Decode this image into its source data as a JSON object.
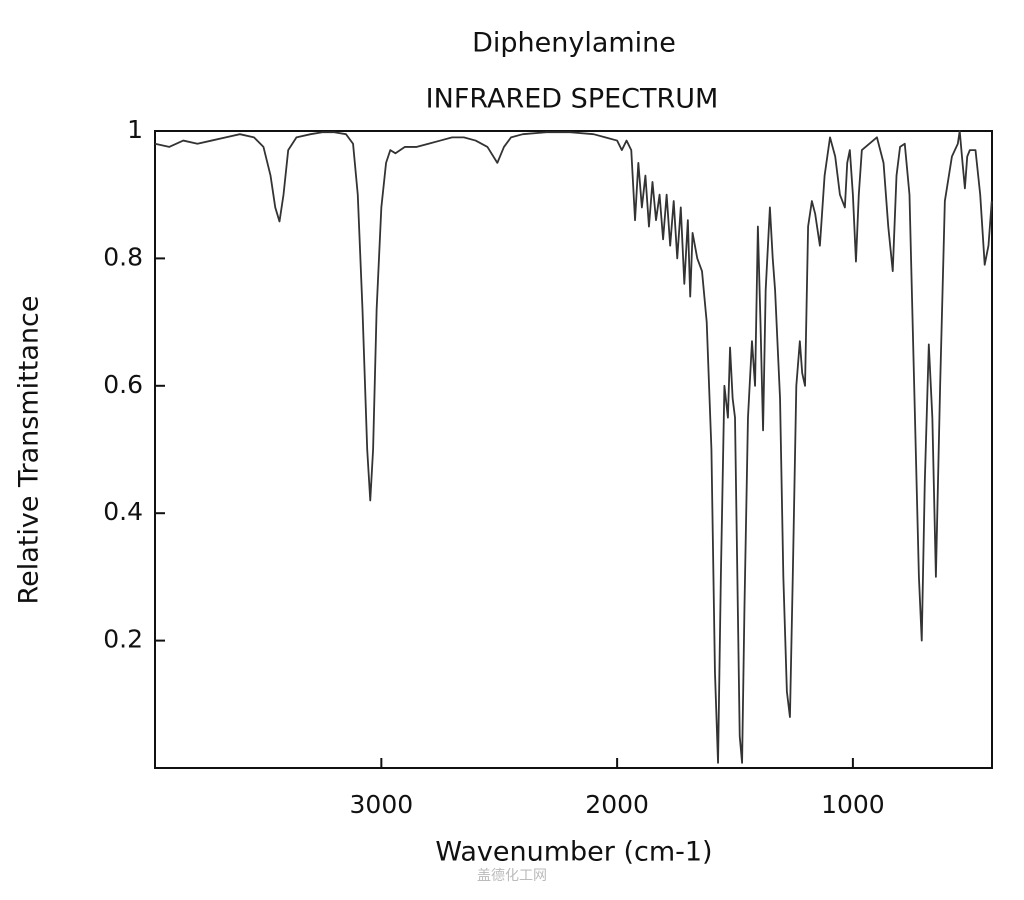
{
  "chart_data": {
    "type": "line",
    "title": "Diphenylamine",
    "subtitle": "INFRARED SPECTRUM",
    "x_label": "Wavenumber (cm-1)",
    "y_label": "Relative Transmittance",
    "watermark": "盖德化工网",
    "xlim": [
      3960,
      410
    ],
    "ylim": [
      0,
      1
    ],
    "xticks": [
      3000,
      2000,
      1000
    ],
    "yticks": [
      0.2,
      0.4,
      0.6,
      0.8,
      1
    ],
    "x": [
      3960,
      3900,
      3840,
      3780,
      3720,
      3660,
      3600,
      3540,
      3500,
      3470,
      3450,
      3432,
      3415,
      3395,
      3360,
      3300,
      3250,
      3200,
      3150,
      3120,
      3100,
      3080,
      3060,
      3047,
      3035,
      3020,
      3000,
      2980,
      2962,
      2940,
      2900,
      2850,
      2800,
      2750,
      2700,
      2650,
      2600,
      2550,
      2508,
      2480,
      2450,
      2400,
      2300,
      2200,
      2100,
      2050,
      2000,
      1980,
      1960,
      1940,
      1924,
      1910,
      1895,
      1880,
      1865,
      1850,
      1835,
      1820,
      1805,
      1790,
      1775,
      1760,
      1745,
      1730,
      1715,
      1700,
      1690,
      1680,
      1660,
      1640,
      1620,
      1600,
      1585,
      1572,
      1560,
      1545,
      1530,
      1521,
      1510,
      1500,
      1490,
      1480,
      1470,
      1460,
      1445,
      1428,
      1415,
      1403,
      1392,
      1381,
      1370,
      1352,
      1340,
      1330,
      1309,
      1295,
      1280,
      1267,
      1255,
      1240,
      1225,
      1215,
      1203,
      1190,
      1174,
      1160,
      1140,
      1120,
      1097,
      1075,
      1055,
      1034,
      1024,
      1013,
      1000,
      987,
      975,
      962,
      930,
      898,
      870,
      850,
      831,
      815,
      800,
      780,
      760,
      740,
      720,
      708,
      695,
      678,
      663,
      648,
      630,
      610,
      580,
      555,
      547,
      535,
      525,
      515,
      504,
      480,
      460,
      441,
      425,
      411
    ],
    "series": [
      {
        "name": "Diphenylamine",
        "color": "#333333",
        "values": [
          0.98,
          0.975,
          0.985,
          0.98,
          0.985,
          0.99,
          0.995,
          0.99,
          0.975,
          0.93,
          0.88,
          0.858,
          0.9,
          0.97,
          0.99,
          0.995,
          0.998,
          0.998,
          0.995,
          0.98,
          0.9,
          0.72,
          0.5,
          0.42,
          0.5,
          0.72,
          0.88,
          0.95,
          0.97,
          0.965,
          0.975,
          0.975,
          0.98,
          0.985,
          0.99,
          0.99,
          0.985,
          0.975,
          0.95,
          0.975,
          0.99,
          0.995,
          0.998,
          0.998,
          0.995,
          0.99,
          0.985,
          0.97,
          0.985,
          0.97,
          0.86,
          0.95,
          0.88,
          0.93,
          0.85,
          0.92,
          0.86,
          0.9,
          0.83,
          0.9,
          0.82,
          0.89,
          0.8,
          0.88,
          0.76,
          0.86,
          0.74,
          0.84,
          0.8,
          0.78,
          0.7,
          0.5,
          0.15,
          0.008,
          0.3,
          0.6,
          0.55,
          0.66,
          0.58,
          0.55,
          0.3,
          0.05,
          0.008,
          0.25,
          0.55,
          0.67,
          0.6,
          0.85,
          0.7,
          0.53,
          0.75,
          0.88,
          0.8,
          0.75,
          0.58,
          0.3,
          0.12,
          0.08,
          0.3,
          0.6,
          0.67,
          0.62,
          0.6,
          0.85,
          0.89,
          0.87,
          0.82,
          0.93,
          0.99,
          0.96,
          0.9,
          0.88,
          0.95,
          0.97,
          0.9,
          0.795,
          0.9,
          0.97,
          0.98,
          0.99,
          0.95,
          0.85,
          0.78,
          0.93,
          0.975,
          0.98,
          0.9,
          0.6,
          0.3,
          0.2,
          0.45,
          0.665,
          0.55,
          0.3,
          0.6,
          0.89,
          0.96,
          0.98,
          1.0,
          0.95,
          0.91,
          0.96,
          0.97,
          0.97,
          0.9,
          0.79,
          0.82,
          0.89
        ]
      }
    ]
  }
}
